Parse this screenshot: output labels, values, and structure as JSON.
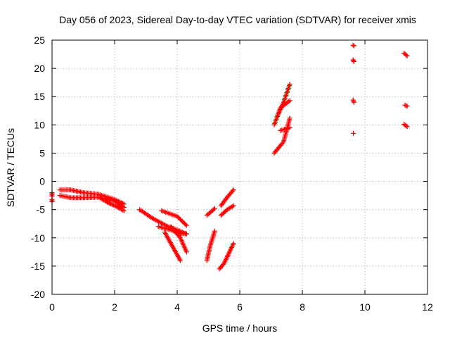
{
  "chart_data": {
    "type": "scatter",
    "title": "Day 056 of 2023, Sidereal Day-to-day VTEC variation (SDTVAR) for receiver xmis",
    "xlabel": "GPS time / hours",
    "ylabel": "SDTVAR / TECUs",
    "xlim": [
      0,
      12
    ],
    "ylim": [
      -20,
      25
    ],
    "xticks": [
      0,
      2,
      4,
      6,
      8,
      10,
      12
    ],
    "yticks": [
      -20,
      -15,
      -10,
      -5,
      0,
      5,
      10,
      15,
      20,
      25
    ],
    "grid": true,
    "marker": "+",
    "color": "#ff0000",
    "segments": [
      {
        "x": [
          0.0,
          0.0
        ],
        "y": [
          -2.0,
          -2.6
        ]
      },
      {
        "x": [
          0.0,
          0.0
        ],
        "y": [
          -3.2,
          -3.6
        ]
      },
      {
        "x": [
          0.25,
          0.6,
          1.0,
          1.5,
          2.0,
          2.3
        ],
        "y": [
          -1.5,
          -1.5,
          -2.0,
          -2.3,
          -3.2,
          -4.0
        ]
      },
      {
        "x": [
          0.25,
          0.6,
          1.0,
          1.5,
          1.8,
          2.0,
          2.3
        ],
        "y": [
          -2.5,
          -2.9,
          -2.9,
          -2.8,
          -3.8,
          -4.3,
          -5.2
        ]
      },
      {
        "x": [
          1.7,
          2.0,
          2.3
        ],
        "y": [
          -3.0,
          -3.5,
          -4.6
        ]
      },
      {
        "x": [
          2.8,
          3.2,
          3.7,
          4.0,
          4.3
        ],
        "y": [
          -5.0,
          -6.5,
          -8.0,
          -8.6,
          -9.3
        ]
      },
      {
        "x": [
          3.4,
          3.8,
          4.1,
          4.3
        ],
        "y": [
          -8.0,
          -8.6,
          -9.2,
          -9.3
        ]
      },
      {
        "x": [
          3.5,
          4.0,
          4.3
        ],
        "y": [
          -5.2,
          -6.2,
          -7.8
        ]
      },
      {
        "x": [
          3.8,
          4.1,
          4.3
        ],
        "y": [
          -8.0,
          -10.0,
          -12.5
        ]
      },
      {
        "x": [
          3.6,
          3.9,
          4.1
        ],
        "y": [
          -9.0,
          -12.0,
          -14.0
        ]
      },
      {
        "x": [
          4.95,
          5.05,
          5.2
        ],
        "y": [
          -14.0,
          -11.5,
          -8.8
        ]
      },
      {
        "x": [
          4.95,
          5.1,
          5.2
        ],
        "y": [
          -6.0,
          -5.3,
          -4.8
        ]
      },
      {
        "x": [
          5.35,
          5.5,
          5.8
        ],
        "y": [
          -15.5,
          -14.5,
          -11.0
        ]
      },
      {
        "x": [
          5.4,
          5.6,
          5.8
        ],
        "y": [
          -6.0,
          -5.0,
          -4.3
        ]
      },
      {
        "x": [
          5.4,
          5.6,
          5.8
        ],
        "y": [
          -4.3,
          -2.8,
          -1.5
        ]
      },
      {
        "x": [
          7.1,
          7.3,
          7.6
        ],
        "y": [
          10.0,
          13.0,
          14.3
        ]
      },
      {
        "x": [
          7.2,
          7.4,
          7.6
        ],
        "y": [
          11.5,
          14.0,
          17.2
        ]
      },
      {
        "x": [
          7.1,
          7.4,
          7.6
        ],
        "y": [
          5.0,
          7.0,
          11.2
        ]
      },
      {
        "x": [
          7.3,
          7.6
        ],
        "y": [
          9.0,
          9.5
        ]
      },
      {
        "x": [
          9.62,
          9.65
        ],
        "y": [
          24.1,
          24.0
        ]
      },
      {
        "x": [
          9.62,
          9.65
        ],
        "y": [
          21.5,
          21.2
        ]
      },
      {
        "x": [
          9.62,
          9.65
        ],
        "y": [
          14.4,
          14.0
        ]
      },
      {
        "x": [
          9.63
        ],
        "y": [
          8.5
        ]
      },
      {
        "x": [
          11.25,
          11.35
        ],
        "y": [
          22.7,
          22.2
        ]
      },
      {
        "x": [
          11.28,
          11.35
        ],
        "y": [
          13.5,
          13.3
        ]
      },
      {
        "x": [
          11.25,
          11.35
        ],
        "y": [
          10.1,
          9.7
        ]
      }
    ]
  }
}
